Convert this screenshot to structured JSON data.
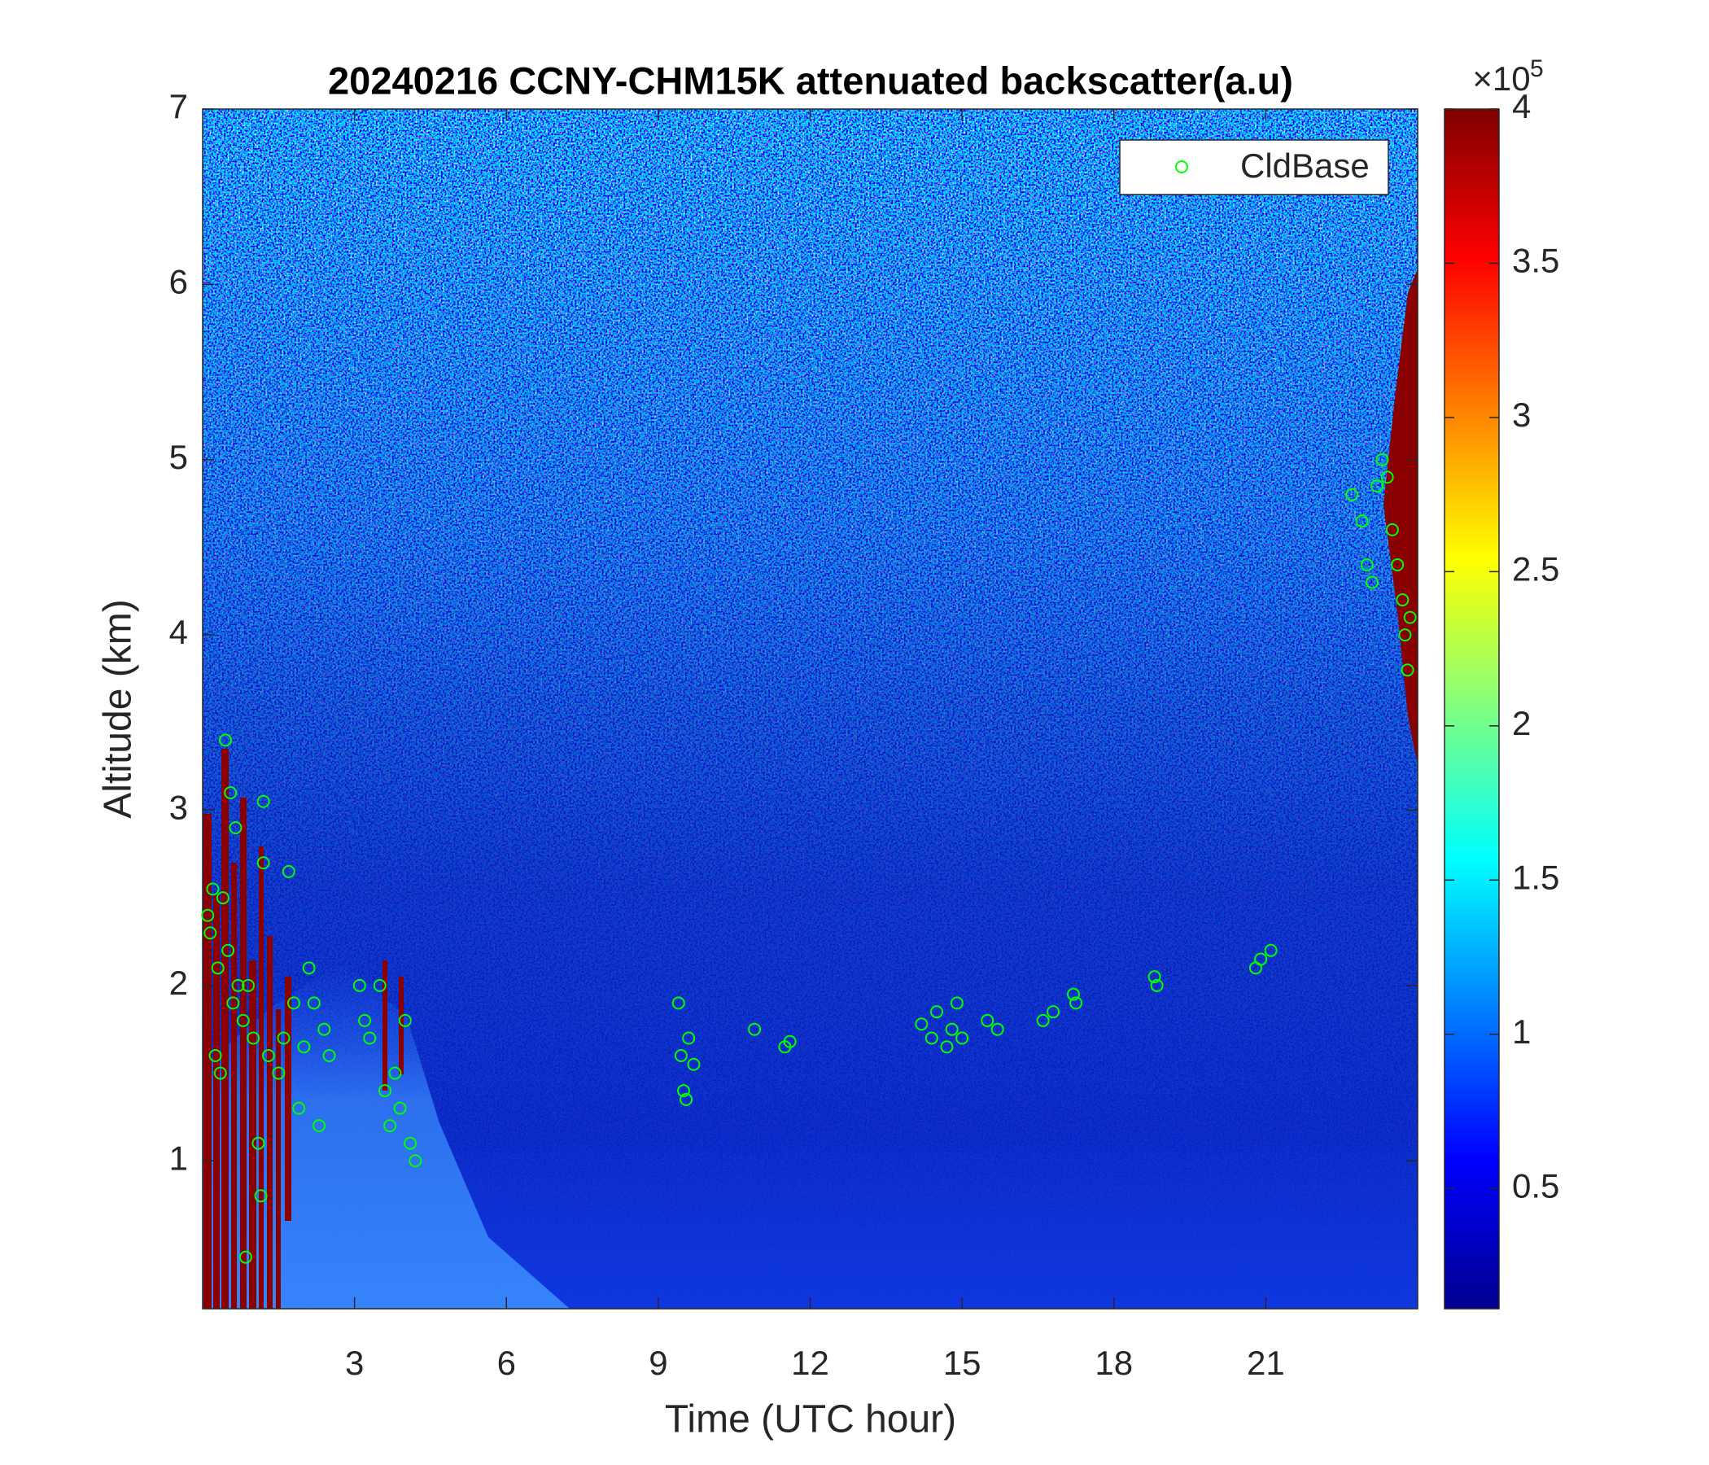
{
  "chart_data": {
    "type": "scatter",
    "title": "20240216 CCNY-CHM15K attenuated backscatter(a.u)",
    "x_label": "Time (UTC hour)",
    "y_label": "Altitude (km)",
    "xlim": [
      0,
      24
    ],
    "ylim": [
      0.156,
      7
    ],
    "xticks": [
      3,
      6,
      9,
      12,
      15,
      18,
      21
    ],
    "yticks": [
      1,
      2,
      3,
      4,
      5,
      6,
      7
    ],
    "legend": "upper right",
    "series": [
      {
        "name": "CldBase",
        "color": "#00ff00",
        "x": [
          0.1,
          0.15,
          0.2,
          0.3,
          0.25,
          0.35,
          0.4,
          0.5,
          0.6,
          0.45,
          0.55,
          0.65,
          0.7,
          0.8,
          0.9,
          1.0,
          1.1,
          1.15,
          0.85,
          1.2,
          1.2,
          1.3,
          1.5,
          1.7,
          1.8,
          1.6,
          1.9,
          2.0,
          2.1,
          2.2,
          2.3,
          2.4,
          2.5,
          3.1,
          3.2,
          3.3,
          3.5,
          3.6,
          3.7,
          3.8,
          3.9,
          4.0,
          4.1,
          4.2,
          9.4,
          9.45,
          9.5,
          9.55,
          9.6,
          9.7,
          10.9,
          11.5,
          11.6,
          14.2,
          14.4,
          14.5,
          14.7,
          14.8,
          14.9,
          15.0,
          15.5,
          15.7,
          16.6,
          16.8,
          17.2,
          17.25,
          18.8,
          18.85,
          20.8,
          20.9,
          21.1,
          22.7,
          22.9,
          23.0,
          23.1,
          23.2,
          23.3,
          23.4,
          23.5,
          23.6,
          23.7,
          23.75,
          23.8,
          23.85
        ],
        "values": [
          2.4,
          2.3,
          2.55,
          2.1,
          1.6,
          1.5,
          2.5,
          2.2,
          1.9,
          3.4,
          3.1,
          2.9,
          2.0,
          1.8,
          2.0,
          1.7,
          1.1,
          0.8,
          0.45,
          3.05,
          2.7,
          1.6,
          1.5,
          2.65,
          1.9,
          1.7,
          1.3,
          1.65,
          2.1,
          1.9,
          1.2,
          1.75,
          1.6,
          2.0,
          1.8,
          1.7,
          2.0,
          1.4,
          1.2,
          1.5,
          1.3,
          1.8,
          1.1,
          1.0,
          1.9,
          1.6,
          1.4,
          1.35,
          1.7,
          1.55,
          1.75,
          1.65,
          1.68,
          1.78,
          1.7,
          1.85,
          1.65,
          1.75,
          1.9,
          1.7,
          1.8,
          1.75,
          1.8,
          1.85,
          1.95,
          1.9,
          2.05,
          2.0,
          2.1,
          2.15,
          2.2,
          4.8,
          4.65,
          4.4,
          4.3,
          4.85,
          5.0,
          4.9,
          4.6,
          4.4,
          4.2,
          4.0,
          3.8,
          4.1
        ]
      }
    ],
    "colorbar": {
      "clim": [
        0.11,
        4
      ],
      "ticks": [
        0.5,
        1,
        1.5,
        2,
        2.5,
        3,
        3.5,
        4
      ],
      "multiplier": "×10",
      "exponent": "5",
      "colormap": [
        "#00008f",
        "#0000ff",
        "#0080ff",
        "#00ffff",
        "#80ff80",
        "#ffff00",
        "#ff8000",
        "#ff0000",
        "#800000"
      ]
    }
  }
}
